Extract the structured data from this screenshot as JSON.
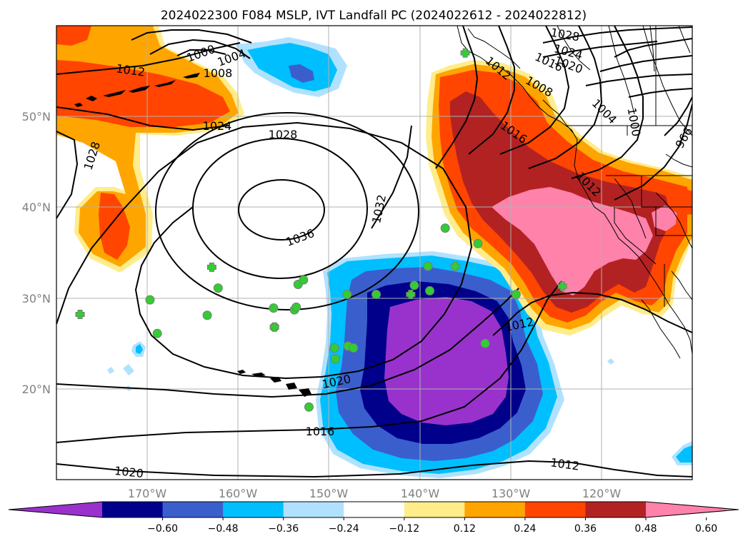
{
  "title": "2024022300 F084 MSLP, IVT Landfall PC (2024022612 - 2024022812)",
  "map": {
    "type": "filled-contour-map",
    "projection": "PlateCarree",
    "lon_range": [
      -180,
      -110
    ],
    "lat_range": [
      10,
      60
    ],
    "grid": true,
    "lon_ticks": [
      -170,
      -160,
      -150,
      -140,
      -130,
      -120
    ],
    "lon_tick_labels": [
      "170°W",
      "160°W",
      "150°W",
      "140°W",
      "130°W",
      "120°W"
    ],
    "lat_ticks": [
      20,
      30,
      40,
      50
    ],
    "lat_tick_labels": [
      "20°N",
      "30°N",
      "40°N",
      "50°N"
    ]
  },
  "mslp_contour_labels": [
    "1000",
    "1004",
    "1008",
    "1012",
    "1016",
    "1020",
    "1024",
    "1028",
    "1032",
    "1036",
    "1028",
    "1024",
    "1020",
    "1016",
    "1012",
    "1008",
    "1004",
    "1000",
    "996",
    "1012",
    "1012",
    "1012",
    "1016",
    "1020",
    "1024",
    "1028"
  ],
  "markers": {
    "circles": [
      [
        -169.7,
        29.8
      ],
      [
        -168.9,
        26.1
      ],
      [
        -163.4,
        28.1
      ],
      [
        -162.2,
        31.1
      ],
      [
        -156.1,
        28.9
      ],
      [
        -156.0,
        26.8
      ],
      [
        -153.8,
        28.7
      ],
      [
        -153.6,
        29.0
      ],
      [
        -153.4,
        31.5
      ],
      [
        -152.8,
        32.0
      ],
      [
        -152.2,
        18.0
      ],
      [
        -149.4,
        24.5
      ],
      [
        -149.3,
        23.3
      ],
      [
        -148.0,
        30.4
      ],
      [
        -147.9,
        24.7
      ],
      [
        -147.3,
        24.5
      ],
      [
        -144.8,
        30.4
      ],
      [
        -140.6,
        31.4
      ],
      [
        -139.1,
        33.5
      ],
      [
        -138.9,
        30.8
      ],
      [
        -137.2,
        37.7
      ],
      [
        -133.6,
        36.0
      ],
      [
        -132.8,
        25.0
      ],
      [
        -129.4,
        30.4
      ]
    ],
    "crosses": [
      [
        -177.4,
        28.2
      ],
      [
        -162.9,
        33.4
      ],
      [
        -156.0,
        26.8
      ],
      [
        -141.0,
        30.4
      ],
      [
        -136.1,
        33.5
      ],
      [
        -135.0,
        57.0
      ],
      [
        -124.3,
        31.3
      ]
    ],
    "marker_color": "#32cd32"
  },
  "colorbar": {
    "ticks": [
      -0.6,
      -0.48,
      -0.36,
      -0.24,
      -0.12,
      0.12,
      0.24,
      0.36,
      0.48,
      0.6
    ],
    "tick_labels": [
      "−0.60",
      "−0.48",
      "−0.36",
      "−0.24",
      "−0.12",
      "0.12",
      "0.24",
      "0.36",
      "0.48",
      "0.60"
    ],
    "colors": [
      "#9932cc",
      "#00008b",
      "#3a5fcd",
      "#00bfff",
      "#b0e2ff",
      "#ffffff",
      "#ffec8b",
      "#ffa500",
      "#ff4500",
      "#b22222",
      "#ff82ab"
    ],
    "extend": "both"
  }
}
